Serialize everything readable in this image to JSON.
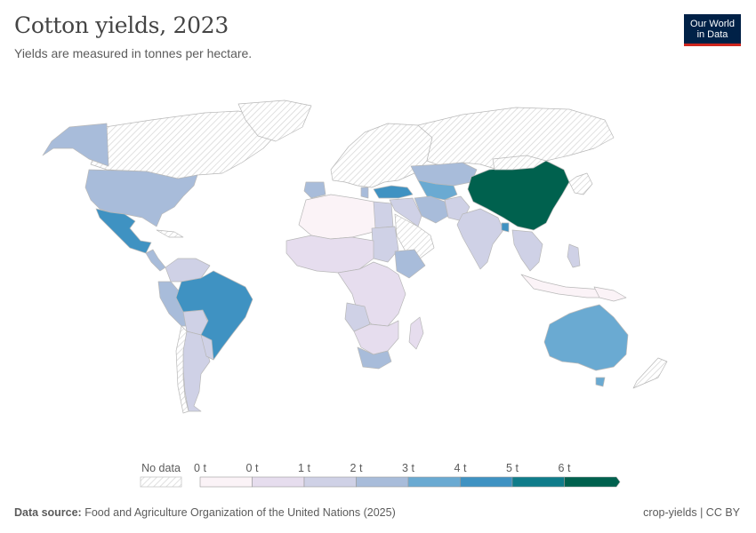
{
  "header": {
    "title": "Cotton yields, 2023",
    "subtitle": "Yields are measured in tonnes per hectare.",
    "logo_line1": "Our World",
    "logo_line2": "in Data"
  },
  "legend": {
    "no_data_label": "No data",
    "bins": [
      {
        "label": "0 t",
        "color": "#fbf3f7"
      },
      {
        "label": "0 t",
        "color": "#e6ddee"
      },
      {
        "label": "1 t",
        "color": "#cfd1e6"
      },
      {
        "label": "2 t",
        "color": "#a8bcda"
      },
      {
        "label": "3 t",
        "color": "#6aaad2"
      },
      {
        "label": "4 t",
        "color": "#3f92c2"
      },
      {
        "label": "5 t",
        "color": "#0f7c8a"
      },
      {
        "label": "6 t",
        "color": "#00614e"
      }
    ],
    "no_data_color": "#e9e9e9"
  },
  "map": {
    "regions": [
      {
        "name": "United States",
        "color": "#a8bcda"
      },
      {
        "name": "Mexico",
        "color": "#3f92c2"
      },
      {
        "name": "Brazil",
        "color": "#3f92c2"
      },
      {
        "name": "China",
        "color": "#00614e"
      },
      {
        "name": "Australia",
        "color": "#6aaad2"
      },
      {
        "name": "Turkey",
        "color": "#3f92c2"
      },
      {
        "name": "Central Asia",
        "color": "#a8bcda"
      },
      {
        "name": "India",
        "color": "#cfd1e6"
      },
      {
        "name": "Africa",
        "color": "#e6ddee"
      },
      {
        "name": "Argentina",
        "color": "#cfd1e6"
      }
    ]
  },
  "footer": {
    "source_label": "Data source:",
    "source_text": "Food and Agriculture Organization of the United Nations (2025)",
    "slug": "crop-yields | CC BY"
  }
}
